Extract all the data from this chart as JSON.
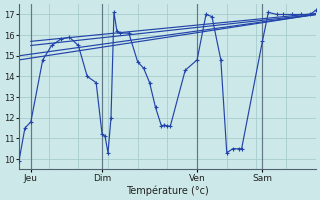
{
  "background_color": "#cce8e8",
  "grid_color": "#a8cccc",
  "line_color": "#2244aa",
  "day_sep_color": "#607888",
  "xlabel": "Température (°c)",
  "ylim": [
    9.5,
    17.5
  ],
  "yticks": [
    10,
    11,
    12,
    13,
    14,
    15,
    16,
    17
  ],
  "xlim": [
    0,
    100
  ],
  "day_ticks": [
    4,
    28,
    60,
    82
  ],
  "day_names": [
    "Jeu",
    "Dim",
    "Ven",
    "Sam"
  ],
  "smooth_lines": [
    {
      "x": [
        0,
        100
      ],
      "y": [
        14.8,
        17.0
      ]
    },
    {
      "x": [
        0,
        100
      ],
      "y": [
        15.0,
        17.0
      ]
    },
    {
      "x": [
        4,
        100
      ],
      "y": [
        15.5,
        17.0
      ]
    },
    {
      "x": [
        4,
        100
      ],
      "y": [
        15.7,
        17.05
      ]
    }
  ],
  "main_x": [
    0,
    2,
    4,
    8,
    11,
    14,
    17,
    20,
    23,
    26,
    28,
    29,
    30,
    31,
    32,
    33,
    34,
    37,
    40,
    42,
    44,
    46,
    48,
    49,
    50,
    51,
    56,
    60,
    63,
    65,
    68,
    70,
    72,
    74,
    75,
    82,
    84,
    87,
    89,
    92,
    95,
    98,
    100
  ],
  "main_y": [
    9.9,
    11.5,
    11.8,
    14.8,
    15.5,
    15.8,
    15.9,
    15.5,
    14.0,
    13.7,
    11.2,
    11.1,
    10.3,
    12.0,
    17.1,
    16.2,
    16.1,
    16.1,
    14.7,
    14.4,
    13.7,
    12.5,
    11.6,
    11.65,
    11.6,
    11.6,
    14.3,
    14.8,
    17.0,
    16.9,
    14.8,
    10.3,
    10.5,
    10.5,
    10.5,
    15.7,
    17.1,
    17.0,
    17.0,
    17.0,
    17.0,
    17.0,
    17.2
  ]
}
